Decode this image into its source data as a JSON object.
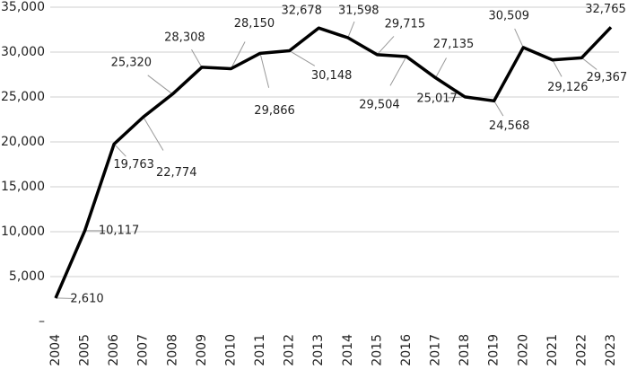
{
  "chart_data": {
    "type": "line",
    "x": [
      "2004",
      "2005",
      "2006",
      "2007",
      "2008",
      "2009",
      "2010",
      "2011",
      "2012",
      "2013",
      "2014",
      "2015",
      "2016",
      "2017",
      "2018",
      "2019",
      "2020",
      "2021",
      "2022",
      "2023"
    ],
    "series": [
      {
        "color": "#000000",
        "values": [
          2610,
          10117,
          19763,
          22774,
          25320,
          28308,
          28150,
          29866,
          30148,
          32678,
          31598,
          29715,
          29504,
          27135,
          25017,
          24568,
          30509,
          29126,
          29367,
          32765
        ],
        "value_labels": [
          "2,610",
          "10,117",
          "19,763",
          "22,774",
          "25,320",
          "28,308",
          "28,150",
          "29,866",
          "30,148",
          "32,678",
          "31,598",
          "29,715",
          "29,504",
          "27,135",
          "25,017",
          "24,568",
          "30,509",
          "29,126",
          "29,367",
          "32,765"
        ]
      }
    ],
    "ylim": [
      0,
      35000
    ],
    "yticks": [
      {
        "value": 0,
        "label": "–"
      },
      {
        "value": 5000,
        "label": "5,000"
      },
      {
        "value": 10000,
        "label": "10,000"
      },
      {
        "value": 15000,
        "label": "15,000"
      },
      {
        "value": 20000,
        "label": "20,000"
      },
      {
        "value": 25000,
        "label": "25,000"
      },
      {
        "value": 30000,
        "label": "30,000"
      },
      {
        "value": 35000,
        "label": "35,000"
      }
    ],
    "grid": true
  }
}
